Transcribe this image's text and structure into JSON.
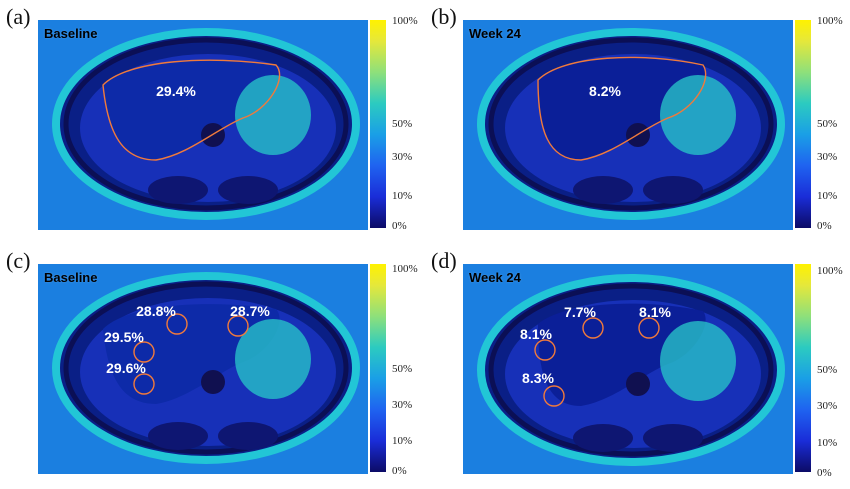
{
  "panels": [
    {
      "id": "a",
      "letter": "(a)",
      "label": "Baseline",
      "rois": [
        {
          "text": "29.4%"
        }
      ]
    },
    {
      "id": "b",
      "letter": "(b)",
      "label": "Week 24",
      "rois": [
        {
          "text": "8.2%"
        }
      ]
    },
    {
      "id": "c",
      "letter": "(c)",
      "label": "Baseline",
      "rois": [
        {
          "text": "28.8%"
        },
        {
          "text": "28.7%"
        },
        {
          "text": "29.5%"
        },
        {
          "text": "29.6%"
        }
      ]
    },
    {
      "id": "d",
      "letter": "(d)",
      "label": "Week 24",
      "rois": [
        {
          "text": "7.7%"
        },
        {
          "text": "8.1%"
        },
        {
          "text": "8.1%"
        },
        {
          "text": "8.3%"
        }
      ]
    }
  ],
  "colorbar": {
    "ticks": [
      "100%",
      "50%",
      "30%",
      "10%",
      "0%"
    ]
  },
  "colors": {
    "roi_outline": "#f07a3c",
    "colormap_low": "#0c0b66",
    "colormap_high": "#fff200"
  }
}
